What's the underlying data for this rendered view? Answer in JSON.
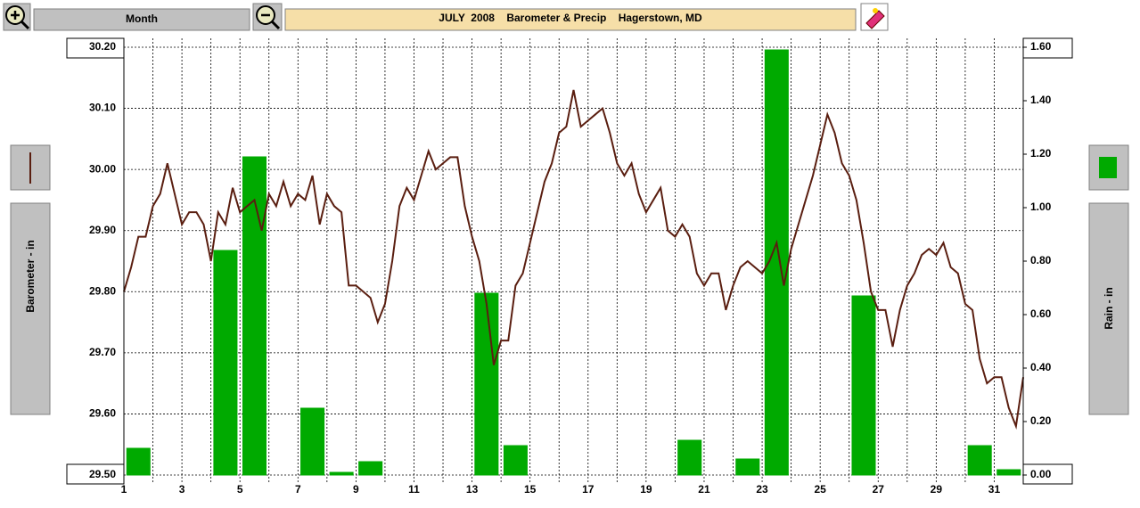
{
  "toolbar": {
    "period": "Month"
  },
  "chart_data": {
    "type": "combo",
    "title": "JULY  2008    Barometer & Precip    Hagerstown, MD",
    "y_label": "Barometer - in",
    "y2_label": "Rain - in",
    "xlim": [
      1,
      32
    ],
    "xticks": [
      1,
      3,
      5,
      7,
      9,
      11,
      13,
      15,
      17,
      19,
      21,
      23,
      25,
      27,
      29,
      31
    ],
    "xgrid_minor": [
      2,
      4,
      6,
      8,
      10,
      12,
      14,
      16,
      18,
      20,
      22,
      24,
      26,
      28,
      30
    ],
    "ylim": [
      29.5,
      30.2
    ],
    "yticks": [
      {
        "value": 29.5,
        "label": "29.50"
      },
      {
        "value": 29.6,
        "label": "29.60"
      },
      {
        "value": 29.7,
        "label": "29.70"
      },
      {
        "value": 29.8,
        "label": "29.80"
      },
      {
        "value": 29.9,
        "label": "29.90"
      },
      {
        "value": 30.0,
        "label": "30.00"
      },
      {
        "value": 30.1,
        "label": "30.10"
      },
      {
        "value": 30.2,
        "label": "30.20"
      }
    ],
    "y2lim": [
      0,
      1.6
    ],
    "y2ticks": [
      {
        "value": 0,
        "label": "0.00"
      },
      {
        "value": 0.2,
        "label": "0.20"
      },
      {
        "value": 0.4,
        "label": "0.40"
      },
      {
        "value": 0.6,
        "label": "0.60"
      },
      {
        "value": 0.8,
        "label": "0.80"
      },
      {
        "value": 1.0,
        "label": "1.00"
      },
      {
        "value": 1.2,
        "label": "1.20"
      },
      {
        "value": 1.4,
        "label": "1.40"
      },
      {
        "value": 1.6,
        "label": "1.60"
      }
    ],
    "grid": true,
    "series": [
      {
        "kind": "bar",
        "axis": "y2",
        "color": "#00aa00",
        "x": [
          1,
          2,
          3,
          4,
          5,
          6,
          7,
          8,
          9,
          10,
          11,
          12,
          13,
          14,
          15,
          16,
          17,
          18,
          19,
          20,
          21,
          22,
          23,
          24,
          25,
          26,
          27,
          28,
          29,
          30,
          31
        ],
        "values": [
          0.1,
          0,
          0,
          0.84,
          1.19,
          0,
          0.25,
          0.01,
          0.05,
          0,
          0,
          0,
          0.68,
          0.11,
          0,
          0,
          0,
          0,
          0,
          0.13,
          0,
          0.06,
          1.59,
          0,
          0,
          0.67,
          0,
          0,
          0,
          0.11,
          0.02
        ]
      },
      {
        "kind": "line",
        "axis": "y",
        "color": "#5a1e10",
        "x": [
          1,
          1.25,
          1.5,
          1.75,
          2,
          2.25,
          2.5,
          2.75,
          3,
          3.25,
          3.5,
          3.75,
          4,
          4.25,
          4.5,
          4.75,
          5,
          5.25,
          5.5,
          5.75,
          6,
          6.25,
          6.5,
          6.75,
          7,
          7.25,
          7.5,
          7.75,
          8,
          8.25,
          8.5,
          8.75,
          9,
          9.25,
          9.5,
          9.75,
          10,
          10.25,
          10.5,
          10.75,
          11,
          11.25,
          11.5,
          11.75,
          12,
          12.25,
          12.5,
          12.75,
          13,
          13.25,
          13.5,
          13.75,
          14,
          14.25,
          14.5,
          14.75,
          15,
          15.25,
          15.5,
          15.75,
          16,
          16.25,
          16.5,
          16.75,
          17,
          17.25,
          17.5,
          17.75,
          18,
          18.25,
          18.5,
          18.75,
          19,
          19.25,
          19.5,
          19.75,
          20,
          20.25,
          20.5,
          20.75,
          21,
          21.25,
          21.5,
          21.75,
          22,
          22.25,
          22.5,
          22.75,
          23,
          23.25,
          23.5,
          23.75,
          24,
          24.25,
          24.5,
          24.75,
          25,
          25.25,
          25.5,
          25.75,
          26,
          26.25,
          26.5,
          26.75,
          27,
          27.25,
          27.5,
          27.75,
          28,
          28.25,
          28.5,
          28.75,
          29,
          29.25,
          29.5,
          29.75,
          30,
          30.25,
          30.5,
          30.75,
          31,
          31.25,
          31.5,
          31.75,
          32
        ],
        "values": [
          29.8,
          29.84,
          29.89,
          29.89,
          29.94,
          29.96,
          30.01,
          29.96,
          29.91,
          29.93,
          29.93,
          29.91,
          29.85,
          29.93,
          29.91,
          29.97,
          29.93,
          29.94,
          29.95,
          29.9,
          29.96,
          29.94,
          29.98,
          29.94,
          29.96,
          29.95,
          29.99,
          29.91,
          29.96,
          29.94,
          29.93,
          29.81,
          29.81,
          29.8,
          29.79,
          29.75,
          29.78,
          29.85,
          29.94,
          29.97,
          29.95,
          29.99,
          30.03,
          30.0,
          30.01,
          30.02,
          30.02,
          29.94,
          29.89,
          29.85,
          29.78,
          29.68,
          29.72,
          29.72,
          29.81,
          29.83,
          29.88,
          29.93,
          29.98,
          30.01,
          30.06,
          30.07,
          30.13,
          30.07,
          30.08,
          30.09,
          30.1,
          30.06,
          30.01,
          29.99,
          30.01,
          29.96,
          29.93,
          29.95,
          29.97,
          29.9,
          29.89,
          29.91,
          29.89,
          29.83,
          29.81,
          29.83,
          29.83,
          29.77,
          29.81,
          29.84,
          29.85,
          29.84,
          29.83,
          29.85,
          29.88,
          29.81,
          29.87,
          29.91,
          29.95,
          29.99,
          30.04,
          30.09,
          30.06,
          30.01,
          29.99,
          29.95,
          29.88,
          29.8,
          29.77,
          29.77,
          29.71,
          29.77,
          29.81,
          29.83,
          29.86,
          29.87,
          29.86,
          29.88,
          29.84,
          29.83,
          29.78,
          29.77,
          29.69,
          29.65,
          29.66,
          29.66,
          29.61,
          29.58,
          29.66
        ]
      }
    ]
  }
}
